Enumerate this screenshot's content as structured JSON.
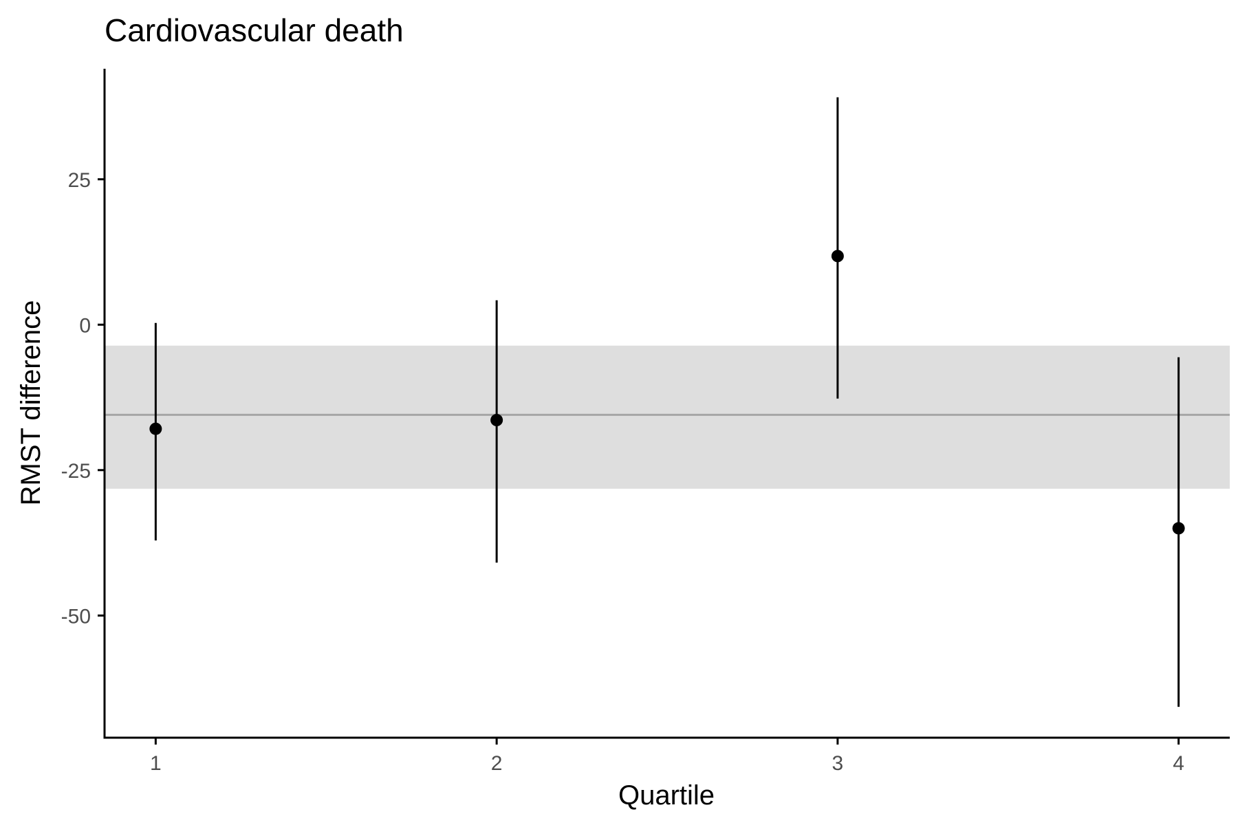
{
  "chart_data": {
    "type": "scatter",
    "title": "Cardiovascular death",
    "xlabel": "Quartile",
    "ylabel": "RMST difference",
    "x_ticks": [
      "1",
      "2",
      "3",
      "4"
    ],
    "y_ticks": [
      25,
      0,
      -25,
      -50
    ],
    "y_tick_labels": [
      "25",
      "0",
      "-25",
      "-50"
    ],
    "xlim": [
      0.85,
      4.15
    ],
    "ylim": [
      -71,
      44
    ],
    "grid": false,
    "reference": {
      "estimate": -15.5,
      "lower": -28.2,
      "upper": -3.6
    },
    "points": [
      {
        "x": 1,
        "y": -17.9,
        "lower": -37.1,
        "upper": 0.3
      },
      {
        "x": 2,
        "y": -16.4,
        "lower": -40.9,
        "upper": 4.2
      },
      {
        "x": 3,
        "y": 11.8,
        "lower": -12.7,
        "upper": 39.1
      },
      {
        "x": 4,
        "y": -35.0,
        "lower": -65.7,
        "upper": -5.6
      }
    ],
    "colors": {
      "points": "#000000",
      "band": "#dedede",
      "reference_line": "#a6a6a6",
      "axis": "#000000"
    }
  }
}
